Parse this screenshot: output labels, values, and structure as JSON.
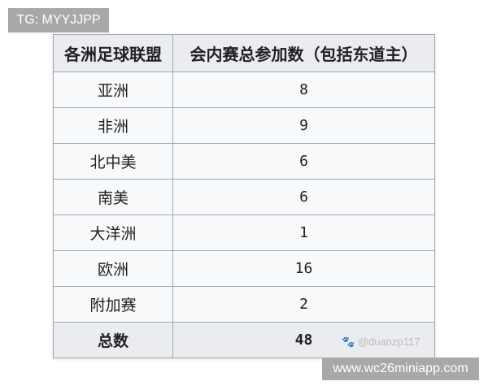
{
  "watermarks": {
    "top_left": "TG: MYYJJPP",
    "bottom_right": "www.wc26miniapp.com",
    "signature": "@duanzp117"
  },
  "table": {
    "headers": [
      "各洲足球联盟",
      "会内赛总参加数（包括东道主）"
    ],
    "rows": [
      {
        "confed": "亚洲",
        "count": "8"
      },
      {
        "confed": "非洲",
        "count": "9"
      },
      {
        "confed": "北中美",
        "count": "6"
      },
      {
        "confed": "南美",
        "count": "6"
      },
      {
        "confed": "大洋洲",
        "count": "1"
      },
      {
        "confed": "欧洲",
        "count": "16"
      },
      {
        "confed": "附加赛",
        "count": "2"
      }
    ],
    "total": {
      "label": "总数",
      "count": "48"
    }
  }
}
